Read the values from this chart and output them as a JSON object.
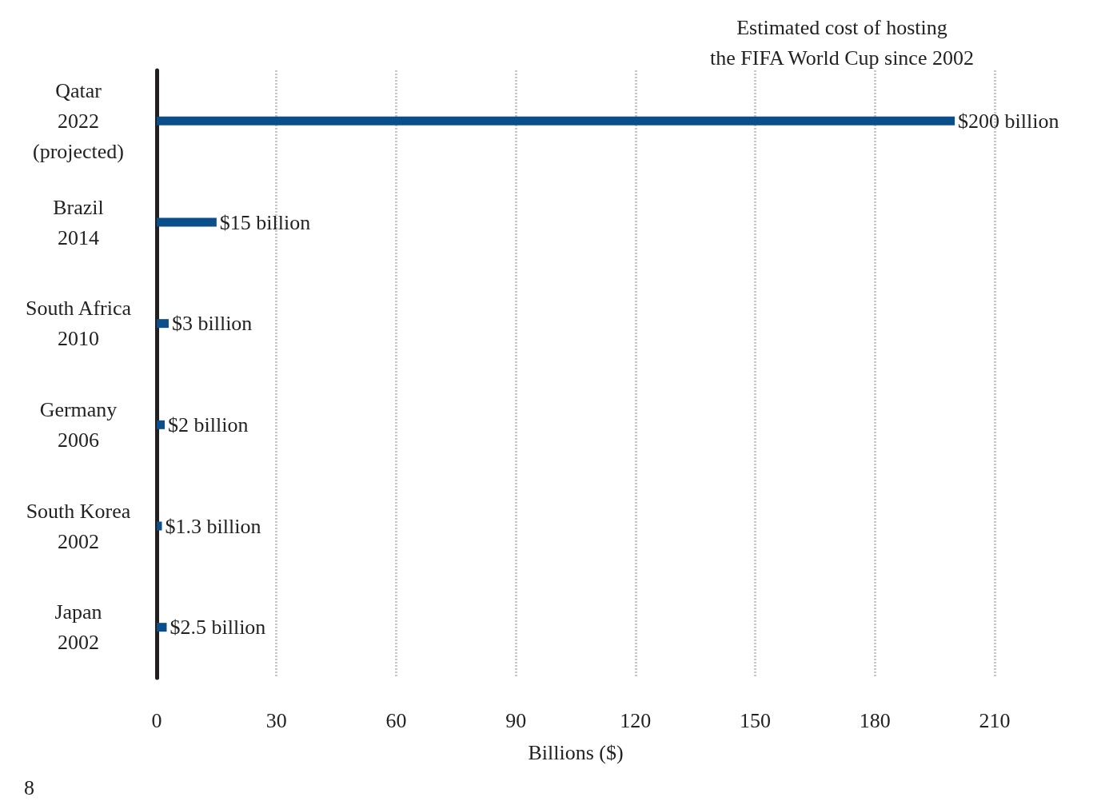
{
  "chart_data": {
    "type": "bar",
    "orientation": "horizontal",
    "title": "Estimated cost of hosting\nthe FIFA World Cup since 2002",
    "xlabel": "Billions ($)",
    "categories": [
      "Qatar\n2022\n(projected)",
      "Brazil\n2014",
      "South Africa\n2010",
      "Germany\n2006",
      "South Korea\n2002",
      "Japan\n2002"
    ],
    "values": [
      200,
      15,
      3,
      2,
      1.3,
      2.5
    ],
    "value_labels": [
      "$200 billion",
      "$15 billion",
      "$3 billion",
      "$2 billion",
      "$1.3 billion",
      "$2.5 billion"
    ],
    "color": "#0b4f8a",
    "xlim": [
      0,
      210
    ],
    "xticks": [
      0,
      30,
      60,
      90,
      120,
      150,
      180,
      210
    ],
    "grid": "x",
    "annotations": [
      "8"
    ]
  }
}
